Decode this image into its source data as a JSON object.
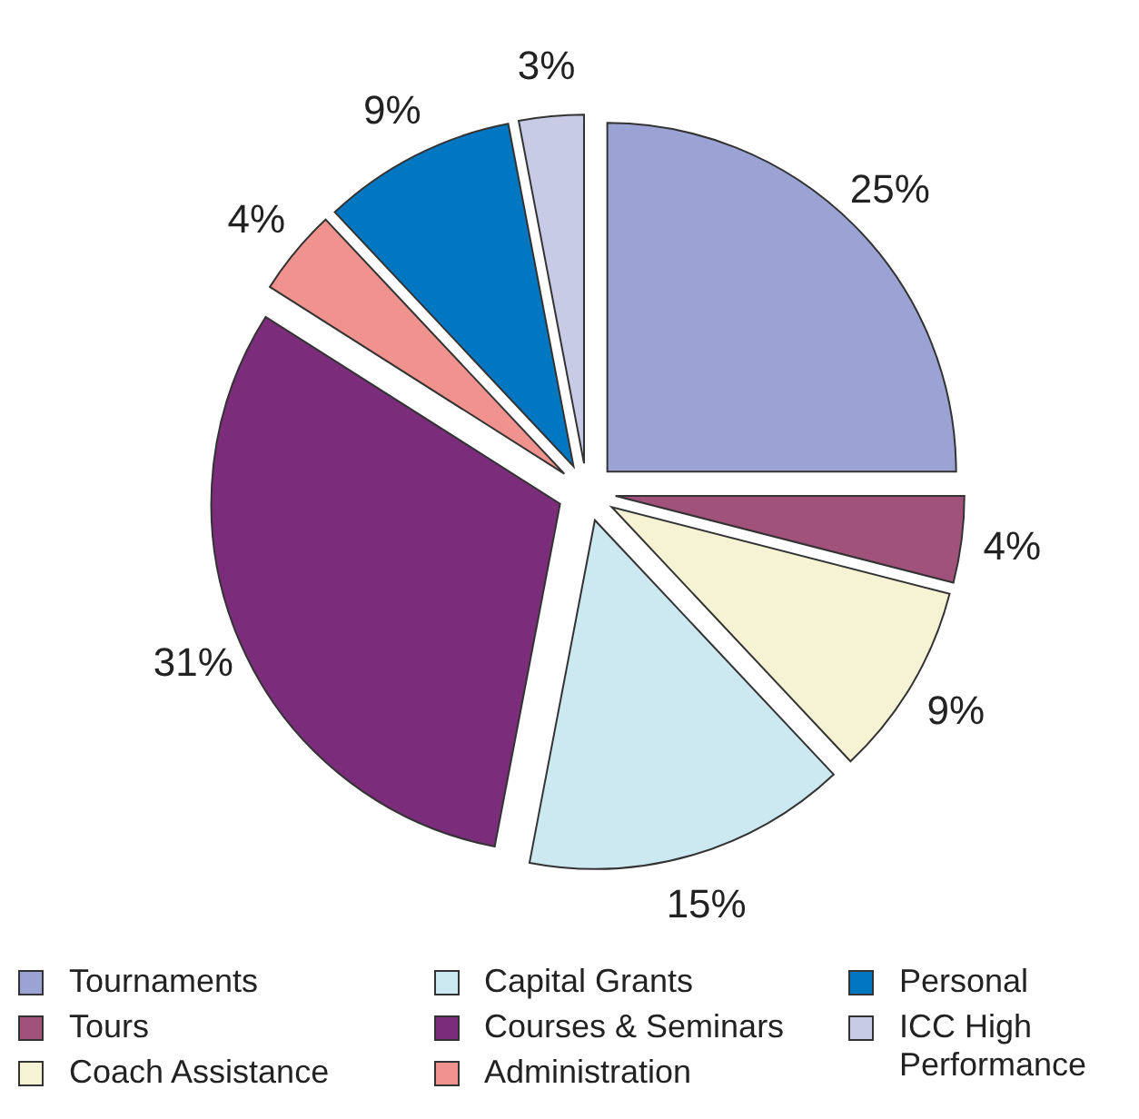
{
  "chart_data": {
    "type": "pie",
    "categories": [
      "Tournaments",
      "Tours",
      "Coach Assistance",
      "Capital Grants",
      "Courses & Seminars",
      "Administration",
      "Personal",
      "ICC High Performance"
    ],
    "values": [
      25,
      4,
      9,
      15,
      31,
      4,
      9,
      3
    ],
    "value_labels": [
      "25%",
      "4%",
      "9%",
      "15%",
      "31%",
      "4%",
      "9%",
      "3%"
    ],
    "colors": [
      "#9aa3d4",
      "#a0527a",
      "#f5f3d3",
      "#cce9f2",
      "#7b2d7b",
      "#f0938e",
      "#0077c0",
      "#c8cbe6"
    ],
    "legend": "bottom"
  }
}
